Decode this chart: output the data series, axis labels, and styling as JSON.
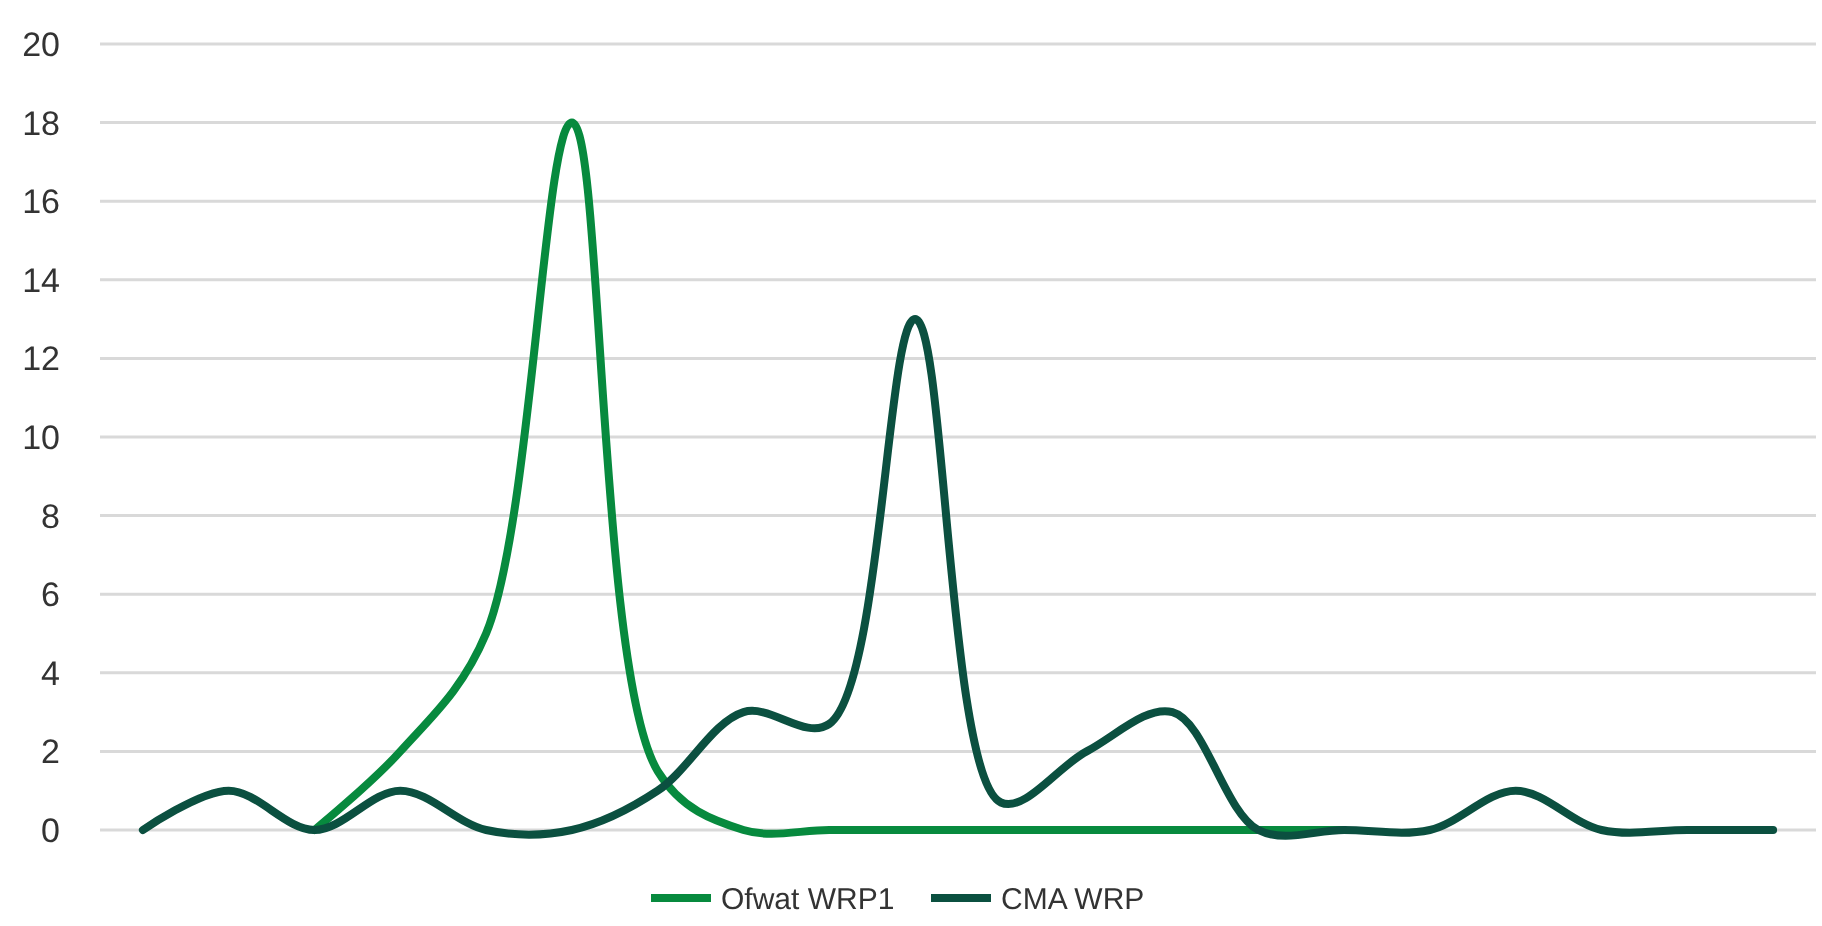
{
  "chart_data": {
    "type": "line",
    "categories": [
      null,
      null,
      null,
      null,
      null,
      null,
      null,
      null,
      null,
      null,
      null,
      null,
      null,
      null,
      null,
      null,
      null,
      null,
      null,
      null
    ],
    "series": [
      {
        "name": "Ofwat WRP1",
        "color": "#078a3e",
        "values": [
          null,
          null,
          0,
          2,
          5,
          18,
          1.5,
          0,
          0,
          0,
          0,
          0,
          0,
          0,
          0,
          null,
          null,
          null,
          null,
          null
        ]
      },
      {
        "name": "CMA WRP",
        "color": "#0b5040",
        "values": [
          0,
          1,
          0,
          1,
          0,
          0,
          1,
          3,
          2.7,
          13,
          0.7,
          2,
          3,
          0,
          0,
          0,
          1,
          0,
          0,
          0
        ]
      }
    ],
    "ylim": [
      0,
      20
    ],
    "yticks": [
      0,
      2,
      4,
      6,
      8,
      10,
      12,
      14,
      16,
      18,
      20
    ],
    "grid": "y",
    "legend": "bottom",
    "marker": "none",
    "line_style": "solid"
  }
}
